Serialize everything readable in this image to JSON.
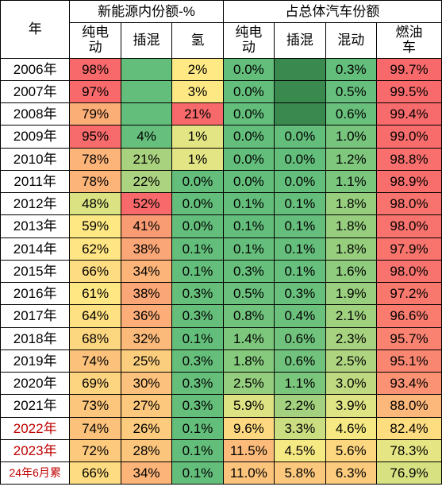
{
  "header": {
    "year": "年",
    "group1": "新能源内份额-%",
    "group2": "占总体汽车份额",
    "sub1": [
      "纯电动",
      "插混",
      "氢"
    ],
    "sub2": [
      "纯电动",
      "插混",
      "混动",
      "燃油车"
    ]
  },
  "colors": {
    "red_high": "#f8696b",
    "orange": "#fa9c73",
    "yellow": "#fcd27f",
    "lightyellow": "#fde884",
    "palegreen": "#d6df82",
    "green": "#a1d07f",
    "green_mid": "#8acc7e",
    "deepgreen": "#63be7b",
    "white": "#ffffff"
  },
  "rows": [
    {
      "year": "2006年",
      "yc": "",
      "cells": [
        {
          "v": "98%",
          "c": "#f8696b"
        },
        {
          "v": "",
          "c": "#63be7b"
        },
        {
          "v": "2%",
          "c": "#ffe984"
        },
        {
          "v": "0.0%",
          "c": "#63be7b"
        },
        {
          "v": "",
          "c": "#3a8a50"
        },
        {
          "v": "0.3%",
          "c": "#63be7b"
        },
        {
          "v": "99.7%",
          "c": "#f8696b"
        }
      ]
    },
    {
      "year": "2007年",
      "yc": "",
      "cells": [
        {
          "v": "97%",
          "c": "#f8696b"
        },
        {
          "v": "",
          "c": "#63be7b"
        },
        {
          "v": "3%",
          "c": "#fde884"
        },
        {
          "v": "0.0%",
          "c": "#63be7b"
        },
        {
          "v": "",
          "c": "#3a8a50"
        },
        {
          "v": "0.5%",
          "c": "#66bf7c"
        },
        {
          "v": "99.5%",
          "c": "#f86a6b"
        }
      ]
    },
    {
      "year": "2008年",
      "yc": "",
      "cells": [
        {
          "v": "79%",
          "c": "#fcae77"
        },
        {
          "v": "",
          "c": "#63be7b"
        },
        {
          "v": "21%",
          "c": "#f8696b"
        },
        {
          "v": "0.0%",
          "c": "#63be7b"
        },
        {
          "v": "",
          "c": "#3a8a50"
        },
        {
          "v": "0.6%",
          "c": "#69c07c"
        },
        {
          "v": "99.4%",
          "c": "#f86b6c"
        }
      ]
    },
    {
      "year": "2009年",
      "yc": "",
      "cells": [
        {
          "v": "95%",
          "c": "#f86b6c"
        },
        {
          "v": "4%",
          "c": "#66bf7c"
        },
        {
          "v": "1%",
          "c": "#e3e483"
        },
        {
          "v": "0.0%",
          "c": "#63be7b"
        },
        {
          "v": "0.0%",
          "c": "#63be7b"
        },
        {
          "v": "1.0%",
          "c": "#77c57d"
        },
        {
          "v": "99.0%",
          "c": "#f86d6c"
        }
      ]
    },
    {
      "year": "2010年",
      "yc": "",
      "cells": [
        {
          "v": "78%",
          "c": "#fcb479"
        },
        {
          "v": "21%",
          "c": "#a9d27f"
        },
        {
          "v": "1%",
          "c": "#e3e483"
        },
        {
          "v": "0.0%",
          "c": "#63be7b"
        },
        {
          "v": "0.0%",
          "c": "#63be7b"
        },
        {
          "v": "1.2%",
          "c": "#7fc77d"
        },
        {
          "v": "98.8%",
          "c": "#f86f6d"
        }
      ]
    },
    {
      "year": "2011年",
      "yc": "",
      "cells": [
        {
          "v": "78%",
          "c": "#fcb479"
        },
        {
          "v": "22%",
          "c": "#acd37f"
        },
        {
          "v": "0.0%",
          "c": "#63be7b"
        },
        {
          "v": "0.0%",
          "c": "#63be7b"
        },
        {
          "v": "0.0%",
          "c": "#63be7b"
        },
        {
          "v": "1.1%",
          "c": "#7bc67d"
        },
        {
          "v": "98.9%",
          "c": "#f86e6c"
        }
      ]
    },
    {
      "year": "2012年",
      "yc": "",
      "cells": [
        {
          "v": "48%",
          "c": "#dae282"
        },
        {
          "v": "52%",
          "c": "#f8696b"
        },
        {
          "v": "0.0%",
          "c": "#63be7b"
        },
        {
          "v": "0.1%",
          "c": "#64be7b"
        },
        {
          "v": "0.1%",
          "c": "#65be7b"
        },
        {
          "v": "1.8%",
          "c": "#96ce7e"
        },
        {
          "v": "98.0%",
          "c": "#f8736d"
        }
      ]
    },
    {
      "year": "2013年",
      "yc": "",
      "cells": [
        {
          "v": "59%",
          "c": "#fde884"
        },
        {
          "v": "41%",
          "c": "#fa9c73"
        },
        {
          "v": "0.0%",
          "c": "#63be7b"
        },
        {
          "v": "0.1%",
          "c": "#64be7b"
        },
        {
          "v": "0.1%",
          "c": "#65be7b"
        },
        {
          "v": "1.8%",
          "c": "#96ce7e"
        },
        {
          "v": "98.0%",
          "c": "#f8736d"
        }
      ]
    },
    {
      "year": "2014年",
      "yc": "",
      "cells": [
        {
          "v": "62%",
          "c": "#ffe583"
        },
        {
          "v": "38%",
          "c": "#fba676"
        },
        {
          "v": "0.1%",
          "c": "#64be7b"
        },
        {
          "v": "0.1%",
          "c": "#65be7b"
        },
        {
          "v": "0.1%",
          "c": "#65be7b"
        },
        {
          "v": "1.8%",
          "c": "#96ce7e"
        },
        {
          "v": "97.9%",
          "c": "#f8746d"
        }
      ]
    },
    {
      "year": "2015年",
      "yc": "",
      "cells": [
        {
          "v": "66%",
          "c": "#fedc81"
        },
        {
          "v": "34%",
          "c": "#fcb479"
        },
        {
          "v": "0.1%",
          "c": "#64be7b"
        },
        {
          "v": "0.3%",
          "c": "#67bf7c"
        },
        {
          "v": "0.1%",
          "c": "#66bf7c"
        },
        {
          "v": "1.6%",
          "c": "#8fcc7e"
        },
        {
          "v": "98.0%",
          "c": "#f8736d"
        }
      ]
    },
    {
      "year": "2016年",
      "yc": "",
      "cells": [
        {
          "v": "61%",
          "c": "#ffe784"
        },
        {
          "v": "38%",
          "c": "#fba676"
        },
        {
          "v": "0.3%",
          "c": "#65bf7b"
        },
        {
          "v": "0.5%",
          "c": "#6ac07c"
        },
        {
          "v": "0.3%",
          "c": "#68c07c"
        },
        {
          "v": "1.9%",
          "c": "#99cf7f"
        },
        {
          "v": "97.2%",
          "c": "#f9786e"
        }
      ]
    },
    {
      "year": "2017年",
      "yc": "",
      "cells": [
        {
          "v": "64%",
          "c": "#fee182"
        },
        {
          "v": "36%",
          "c": "#fcad78"
        },
        {
          "v": "0.3%",
          "c": "#65bf7b"
        },
        {
          "v": "0.8%",
          "c": "#70c27c"
        },
        {
          "v": "0.4%",
          "c": "#6bc17c"
        },
        {
          "v": "2.1%",
          "c": "#a0d17f"
        },
        {
          "v": "96.6%",
          "c": "#f97c6f"
        }
      ]
    },
    {
      "year": "2018年",
      "yc": "",
      "cells": [
        {
          "v": "68%",
          "c": "#fdd780"
        },
        {
          "v": "32%",
          "c": "#fbba7a"
        },
        {
          "v": "0.1%",
          "c": "#64be7b"
        },
        {
          "v": "1.4%",
          "c": "#7dc77d"
        },
        {
          "v": "0.6%",
          "c": "#70c27c"
        },
        {
          "v": "2.3%",
          "c": "#a7d27f"
        },
        {
          "v": "95.7%",
          "c": "#f98270"
        }
      ]
    },
    {
      "year": "2019年",
      "yc": "",
      "cells": [
        {
          "v": "74%",
          "c": "#fcc27c"
        },
        {
          "v": "25%",
          "c": "#fbce7e"
        },
        {
          "v": "0.3%",
          "c": "#65bf7b"
        },
        {
          "v": "1.8%",
          "c": "#86ca7e"
        },
        {
          "v": "0.6%",
          "c": "#70c27c"
        },
        {
          "v": "2.5%",
          "c": "#aed480"
        },
        {
          "v": "95.1%",
          "c": "#f98671"
        }
      ]
    },
    {
      "year": "2020年",
      "yc": "",
      "cells": [
        {
          "v": "69%",
          "c": "#fdd47f"
        },
        {
          "v": "30%",
          "c": "#fcc17c"
        },
        {
          "v": "0.3%",
          "c": "#65bf7b"
        },
        {
          "v": "2.5%",
          "c": "#95ce7e"
        },
        {
          "v": "1.1%",
          "c": "#7bc67d"
        },
        {
          "v": "3.0%",
          "c": "#bfd980"
        },
        {
          "v": "93.4%",
          "c": "#fa9273"
        }
      ]
    },
    {
      "year": "2021年",
      "yc": "",
      "cells": [
        {
          "v": "73%",
          "c": "#fcc67d"
        },
        {
          "v": "27%",
          "c": "#fcc87d"
        },
        {
          "v": "0.3%",
          "c": "#65bf7b"
        },
        {
          "v": "5.9%",
          "c": "#dde383"
        },
        {
          "v": "2.2%",
          "c": "#a3d17f"
        },
        {
          "v": "3.9%",
          "c": "#dee383"
        },
        {
          "v": "88.0%",
          "c": "#fcb77a"
        }
      ]
    },
    {
      "year": "2022年",
      "yc": "#c00000",
      "cells": [
        {
          "v": "74%",
          "c": "#fcc27c"
        },
        {
          "v": "26%",
          "c": "#fccb7e"
        },
        {
          "v": "0.1%",
          "c": "#64be7b"
        },
        {
          "v": "9.6%",
          "c": "#fdd880"
        },
        {
          "v": "3.3%",
          "c": "#cbdd81"
        },
        {
          "v": "4.6%",
          "c": "#f6e984"
        },
        {
          "v": "82.4%",
          "c": "#fedd81"
        }
      ]
    },
    {
      "year": "2023年",
      "yc": "#c00000",
      "cells": [
        {
          "v": "72%",
          "c": "#fcc97d"
        },
        {
          "v": "28%",
          "c": "#fcc57c"
        },
        {
          "v": "0.1%",
          "c": "#64be7b"
        },
        {
          "v": "11.5%",
          "c": "#fcbb7a"
        },
        {
          "v": "4.5%",
          "c": "#f5e984"
        },
        {
          "v": "5.6%",
          "c": "#fdd680"
        },
        {
          "v": "78.3%",
          "c": "#e6e583"
        }
      ]
    },
    {
      "year": "24年6月累",
      "yc": "#c00000",
      "small": true,
      "cells": [
        {
          "v": "66%",
          "c": "#fedc81"
        },
        {
          "v": "34%",
          "c": "#fcb479"
        },
        {
          "v": "0.1%",
          "c": "#64be7b"
        },
        {
          "v": "11.0%",
          "c": "#fcc37c"
        },
        {
          "v": "5.8%",
          "c": "#fcc87d"
        },
        {
          "v": "6.3%",
          "c": "#fccb7e"
        },
        {
          "v": "76.9%",
          "c": "#d7e182"
        }
      ]
    }
  ]
}
